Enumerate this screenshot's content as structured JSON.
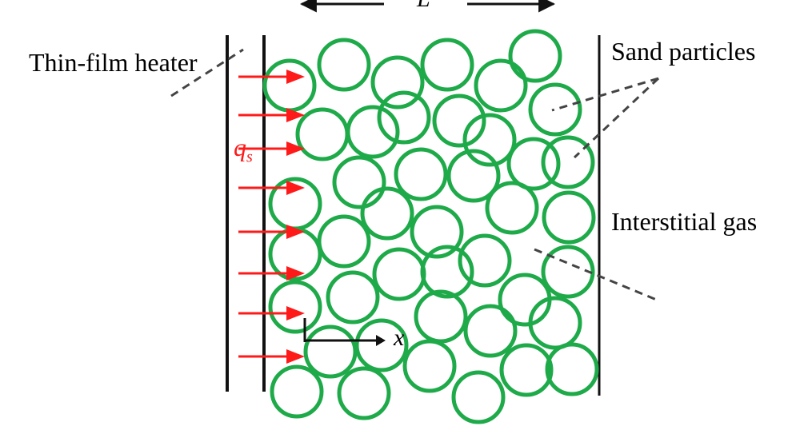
{
  "labels": {
    "heater": "Thin-film heater",
    "sand": "Sand particles",
    "gas": "Interstitial gas",
    "length": "L",
    "heat_flux": "q",
    "heat_flux_sub": "s",
    "axis": "x"
  },
  "colors": {
    "particle": "#1faa4a",
    "heat_arrow": "#ff1a1a",
    "line": "#111111",
    "leader": "#444444"
  }
}
